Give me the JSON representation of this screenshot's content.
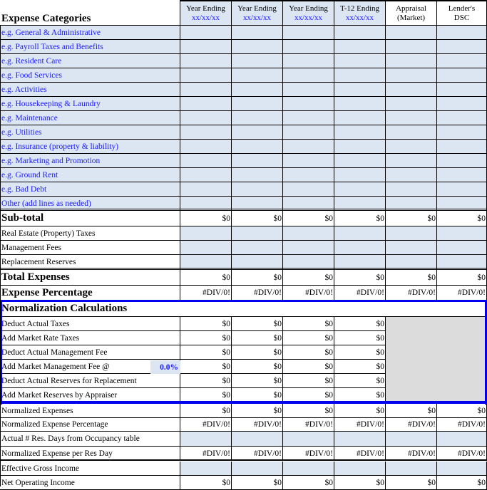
{
  "header": {
    "title": "Expense Categories",
    "columns": [
      {
        "line1": "Year Ending",
        "line2": "xx/xx/xx"
      },
      {
        "line1": "Year Ending",
        "line2": "xx/xx/xx"
      },
      {
        "line1": "Year Ending",
        "line2": "xx/xx/xx"
      },
      {
        "line1": "T-12 Ending",
        "line2": "xx/xx/xx"
      },
      {
        "line1": "Appraisal",
        "line2": "(Market)"
      },
      {
        "line1": "Lender's",
        "line2": "DSC"
      }
    ]
  },
  "expense_rows": [
    "e.g. General & Administrative",
    "e.g. Payroll Taxes and Benefits",
    "e.g. Resident Care",
    "e.g. Food Services",
    "e.g. Activities",
    "e.g. Housekeeping  & Laundry",
    "e.g. Maintenance",
    "e.g. Utilities",
    "e.g. Insurance (property & liability)",
    "e.g. Marketing and Promotion",
    "e.g. Ground Rent",
    "e.g. Bad Debt",
    "Other (add lines as needed)"
  ],
  "subtotal": {
    "label": "Sub-total",
    "values": [
      "$0",
      "$0",
      "$0",
      "$0",
      "$0",
      "$0"
    ]
  },
  "other_rows": [
    "Real Estate (Property) Taxes",
    "Management Fees",
    "Replacement Reserves"
  ],
  "total": {
    "label": "Total Expenses",
    "values": [
      "$0",
      "$0",
      "$0",
      "$0",
      "$0",
      "$0"
    ]
  },
  "expense_pct": {
    "label": "Expense Percentage",
    "values": [
      "#DIV/0!",
      "#DIV/0!",
      "#DIV/0!",
      "#DIV/0!",
      "#DIV/0!",
      "#DIV/0!"
    ]
  },
  "normalization": {
    "title": "Normalization Calculations",
    "fee_rate": "0.0%",
    "rows": [
      {
        "label": "Deduct Actual Taxes",
        "values": [
          "$0",
          "$0",
          "$0",
          "$0"
        ]
      },
      {
        "label": "Add Market Rate Taxes",
        "values": [
          "$0",
          "$0",
          "$0",
          "$0"
        ]
      },
      {
        "label": "Deduct Actual Management Fee",
        "values": [
          "$0",
          "$0",
          "$0",
          "$0"
        ]
      },
      {
        "label": "Add Market Management Fee @",
        "values": [
          "$0",
          "$0",
          "$0",
          "$0"
        ]
      },
      {
        "label": "Deduct Actual Reserves for Replacement",
        "values": [
          "$0",
          "$0",
          "$0",
          "$0"
        ]
      },
      {
        "label": "Add Market Reserves by Appraiser",
        "values": [
          "$0",
          "$0",
          "$0",
          "$0"
        ]
      }
    ]
  },
  "bottom_rows": [
    {
      "label": "Normalized Expenses",
      "values": [
        "$0",
        "$0",
        "$0",
        "$0",
        "$0",
        "$0"
      ]
    },
    {
      "label": "Normalized Expense Percentage",
      "values": [
        "#DIV/0!",
        "#DIV/0!",
        "#DIV/0!",
        "#DIV/0!",
        "#DIV/0!",
        "#DIV/0!"
      ]
    },
    {
      "label": "Actual # Res. Days from Occupancy table",
      "values": []
    },
    {
      "label": "Normalized Expense per Res Day",
      "values": [
        "#DIV/0!",
        "#DIV/0!",
        "#DIV/0!",
        "#DIV/0!",
        "#DIV/0!",
        "#DIV/0!"
      ]
    },
    {
      "label": "Effective Gross Income",
      "values": []
    },
    {
      "label": "Net Operating Income",
      "values": [
        "$0",
        "$0",
        "$0",
        "$0",
        "$0",
        "$0"
      ]
    }
  ]
}
